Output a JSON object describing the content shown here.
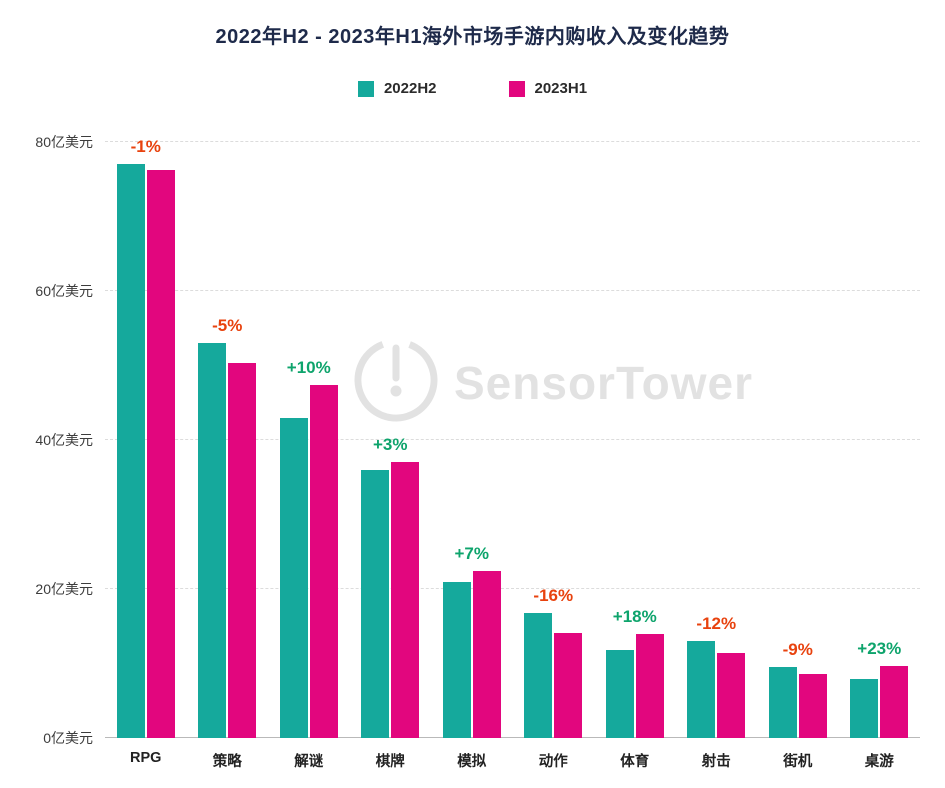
{
  "watermark": {
    "text": "SensorTower"
  },
  "chart_data": {
    "type": "bar",
    "title": "2022年H2 - 2023年H1海外市场手游内购收入及变化趋势",
    "categories": [
      "RPG",
      "策略",
      "解谜",
      "棋牌",
      "模拟",
      "动作",
      "体育",
      "射击",
      "街机",
      "桌游"
    ],
    "series": [
      {
        "name": "2022H2",
        "color": "#15a99c",
        "values": [
          77,
          53,
          43,
          36,
          21,
          16.8,
          11.8,
          13,
          9.5,
          7.9
        ]
      },
      {
        "name": "2023H1",
        "color": "#e2067e",
        "values": [
          76.3,
          50.4,
          47.4,
          37.1,
          22.4,
          14.1,
          13.9,
          11.4,
          8.6,
          9.7
        ]
      }
    ],
    "changes": [
      "-1%",
      "-5%",
      "+10%",
      "+3%",
      "+7%",
      "-16%",
      "+18%",
      "-12%",
      "-9%",
      "+23%"
    ],
    "change_colors": {
      "positive": "#0ea46c",
      "negative": "#e8420e"
    },
    "ylabel": "亿美元",
    "yticks": [
      {
        "value": 0,
        "label": "0亿美元"
      },
      {
        "value": 20,
        "label": "20亿美元"
      },
      {
        "value": 40,
        "label": "40亿美元"
      },
      {
        "value": 60,
        "label": "60亿美元"
      },
      {
        "value": 80,
        "label": "80亿美元"
      }
    ],
    "ylim": [
      0,
      80
    ],
    "grid": "horizontal-dashed",
    "legend_position": "top"
  }
}
